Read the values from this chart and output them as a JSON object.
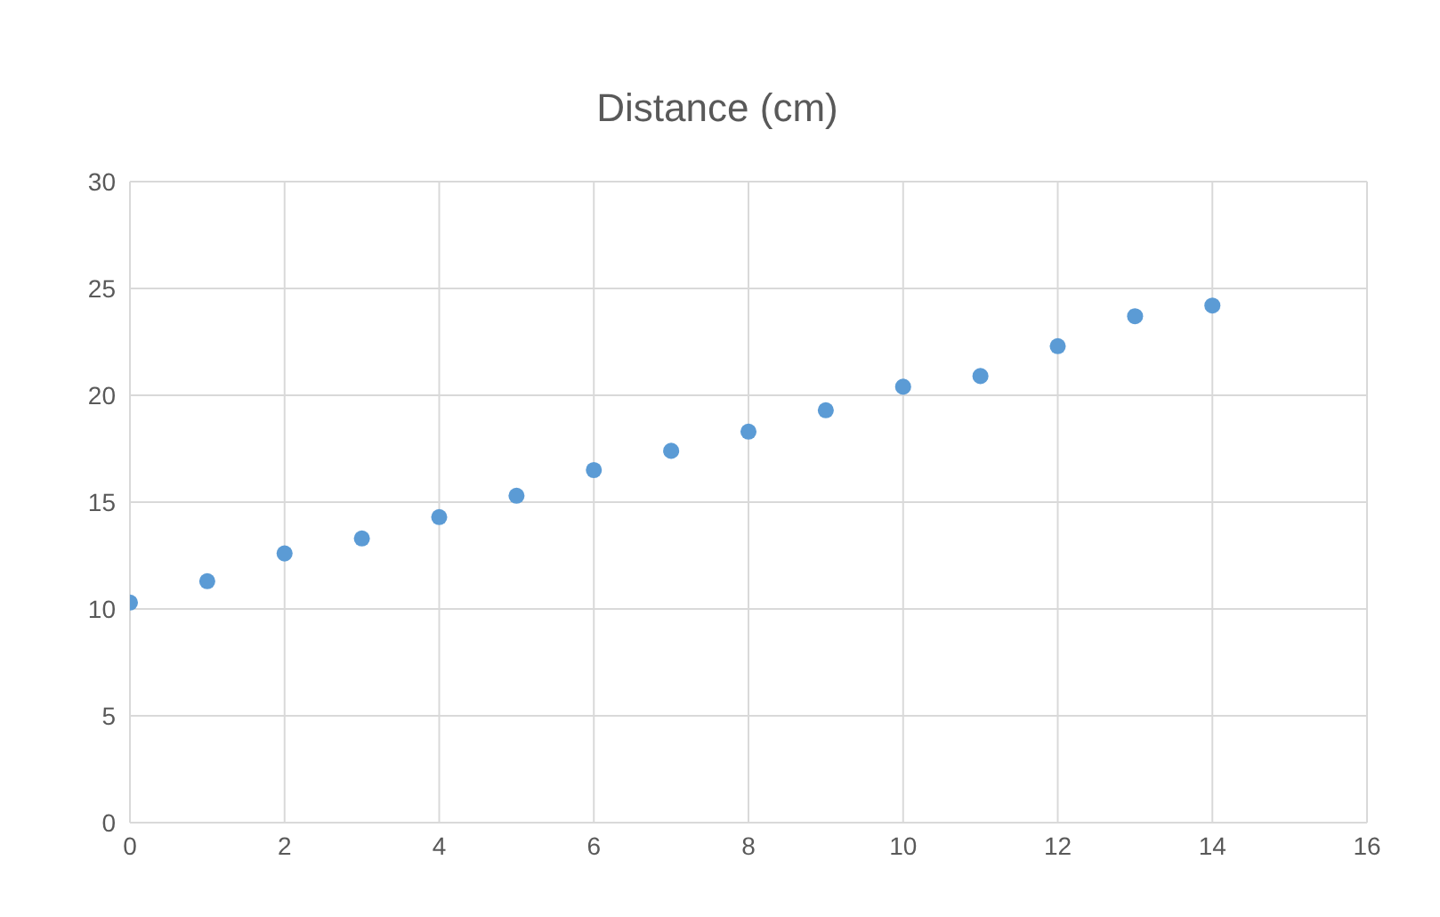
{
  "chart_data": {
    "type": "scatter",
    "title": "Distance (cm)",
    "x": [
      0,
      1,
      2,
      3,
      4,
      5,
      6,
      7,
      8,
      9,
      10,
      11,
      12,
      13,
      14
    ],
    "series": [
      {
        "color": "#5b9bd5",
        "values": [
          10.3,
          11.3,
          12.6,
          13.3,
          14.3,
          15.3,
          16.5,
          17.4,
          18.3,
          19.3,
          20.4,
          20.9,
          22.3,
          23.7,
          24.2
        ]
      }
    ],
    "xlim": [
      0,
      16
    ],
    "xticks": [
      0,
      2,
      4,
      6,
      8,
      10,
      12,
      14,
      16
    ],
    "ylim": [
      0,
      30
    ],
    "yticks": [
      0,
      5,
      10,
      15,
      20,
      25,
      30
    ],
    "grid": true,
    "marker": "circle"
  }
}
